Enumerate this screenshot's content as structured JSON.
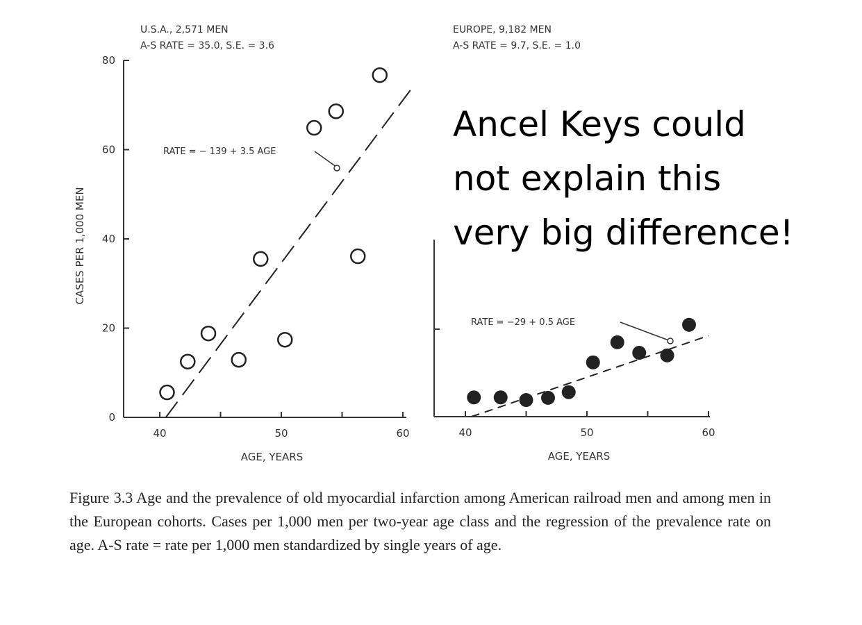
{
  "chart_data": [
    {
      "type": "scatter",
      "panel": "USA",
      "title": "U.S.A., 2,571 MEN",
      "subtitle": "A-S RATE = 35.0, S.E. = 3.6",
      "xlabel": "AGE, YEARS",
      "ylabel": "CASES PER 1,000 MEN",
      "xlim": [
        37,
        61
      ],
      "ylim": [
        0,
        80
      ],
      "xticks": [
        40,
        50,
        60
      ],
      "yticks": [
        0,
        20,
        40,
        60,
        80
      ],
      "marker": "open-circle",
      "x": [
        40.6,
        42.3,
        44.0,
        46.5,
        48.3,
        50.3,
        52.7,
        54.5,
        56.3,
        58.1
      ],
      "y": [
        5.6,
        12.5,
        18.8,
        12.9,
        35.5,
        17.4,
        64.9,
        68.6,
        36.1,
        76.7
      ],
      "fit_label": "RATE = − 139 + 3.5 AGE",
      "fit_line": [
        [
          40.5,
          0
        ],
        [
          60.8,
          74
        ]
      ]
    },
    {
      "type": "scatter",
      "panel": "Europe",
      "title": "EUROPE, 9,182 MEN",
      "subtitle": "A-S RATE = 9.7, S.E. = 1.0",
      "xlabel": "AGE, YEARS",
      "ylabel": "",
      "xlim": [
        37,
        61
      ],
      "ylim": [
        0,
        40
      ],
      "xticks": [
        40,
        50,
        60
      ],
      "yticks": [
        20
      ],
      "marker": "filled-circle",
      "x": [
        40.7,
        42.9,
        45.0,
        46.8,
        48.5,
        50.5,
        52.5,
        54.3,
        56.6,
        58.4
      ],
      "y": [
        4.4,
        4.4,
        3.8,
        4.3,
        5.6,
        12.4,
        17.0,
        14.6,
        14.0,
        21.0
      ],
      "fit_label": "RATE = −29 + 0.5 AGE",
      "fit_line": [
        [
          40.5,
          0
        ],
        [
          60,
          18.5
        ]
      ]
    }
  ],
  "overlay": {
    "line1": "Ancel Keys could",
    "line2": "not explain this",
    "line3": "very big difference!"
  },
  "caption": "Figure 3.3 Age and the prevalence of old myocardial infarction among American railroad men and among men in the European cohorts. Cases per 1,000 men per two-year age class and the regression of the prevalence rate on age. A-S rate = rate per 1,000 men standardized by single years of age."
}
